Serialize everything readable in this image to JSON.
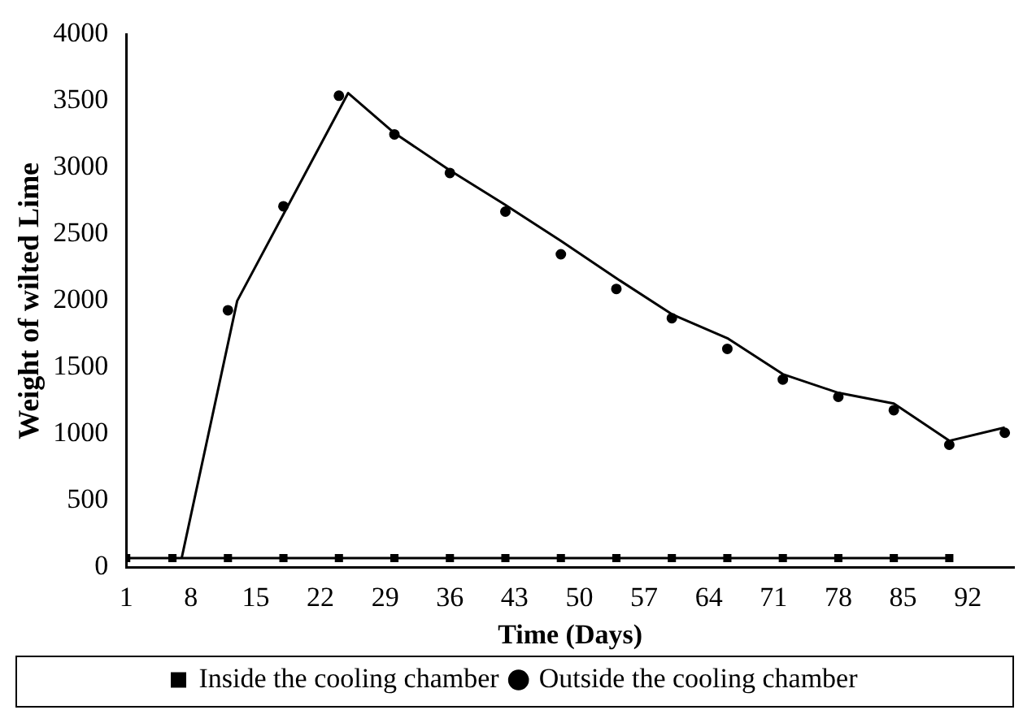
{
  "chart_data": {
    "type": "line",
    "xlabel": "Time (Days)",
    "ylabel": "Weight of wilted Lime",
    "xlim": [
      1,
      97
    ],
    "xticks": [
      1,
      8,
      15,
      22,
      29,
      36,
      43,
      50,
      57,
      64,
      71,
      78,
      85,
      92
    ],
    "ylim": [
      0,
      4000
    ],
    "yticks": [
      0,
      500,
      1000,
      1500,
      2000,
      2500,
      3000,
      3500,
      4000
    ],
    "grid": false,
    "legend": "bottom",
    "series": [
      {
        "name": "Inside the cooling chamber",
        "color": "#000000",
        "marker": "square",
        "x": [
          1,
          6,
          12,
          18,
          24,
          30,
          36,
          42,
          48,
          54,
          60,
          66,
          72,
          78,
          84,
          90
        ],
        "values": [
          70,
          70,
          70,
          70,
          70,
          70,
          70,
          70,
          70,
          70,
          70,
          70,
          70,
          70,
          70,
          70
        ]
      },
      {
        "name": "Outside the cooling chamber",
        "type": "scatter",
        "color": "#000000",
        "marker": "circle",
        "x": [
          12,
          18,
          24,
          30,
          36,
          42,
          48,
          54,
          60,
          66,
          72,
          78,
          84,
          90,
          96
        ],
        "values": [
          1930,
          2710,
          3540,
          3250,
          2960,
          2670,
          2350,
          2090,
          1870,
          1640,
          1410,
          1280,
          1180,
          920,
          1010
        ]
      },
      {
        "color": "#000000",
        "marker": "none",
        "x": [
          7,
          13,
          25,
          30,
          36,
          42,
          48,
          54,
          60,
          66,
          72,
          78,
          84,
          90,
          96
        ],
        "values": [
          70,
          2000,
          3560,
          3260,
          2980,
          2720,
          2450,
          2170,
          1900,
          1720,
          1450,
          1310,
          1230,
          950,
          1050
        ]
      }
    ]
  }
}
